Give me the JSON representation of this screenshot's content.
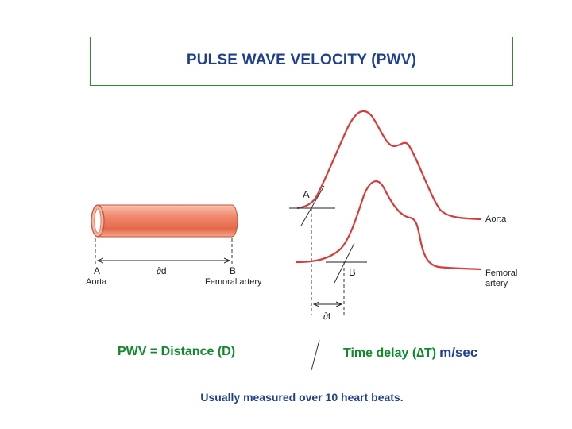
{
  "title": "PULSE WAVE VELOCITY (PWV)",
  "tube": {
    "point_a": "A",
    "point_b": "B",
    "distance_symbol": "∂d",
    "label_a": "Aorta",
    "label_b": "Femoral artery"
  },
  "waves": {
    "point_a": "A",
    "point_b": "B",
    "time_symbol": "∂t",
    "aorta_label": "Aorta",
    "femoral_label_line1": "Femoral",
    "femoral_label_line2": "artery"
  },
  "formula": {
    "left": "PWV = Distance (D)",
    "right": "Time delay (∆T)",
    "unit": "m/sec"
  },
  "note": "Usually measured over 10 heart beats.",
  "colors": {
    "title": "#1f3f8f",
    "box_border": "#2e8b2e",
    "formula": "#118a2c",
    "wave": "#d93a3a",
    "tube": "#ee7a5f"
  }
}
